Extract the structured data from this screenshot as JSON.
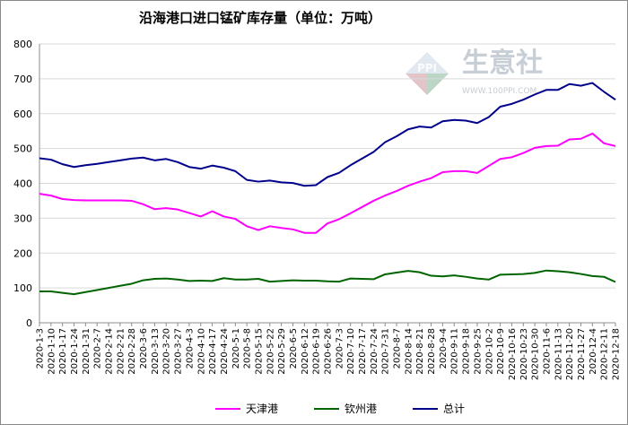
{
  "chart_data": {
    "type": "line",
    "title": "沿海港口进口锰矿库存量（单位：万吨）",
    "xlabel": "",
    "ylabel": "",
    "ylim": [
      0,
      800
    ],
    "yticks": [
      0,
      100,
      200,
      300,
      400,
      500,
      600,
      700,
      800
    ],
    "grid": true,
    "legend_position": "bottom",
    "x": [
      "2020-1-3",
      "2020-1-10",
      "2020-1-17",
      "2020-1-24",
      "2020-1-31",
      "2020-2-7",
      "2020-2-14",
      "2020-2-21",
      "2020-2-28",
      "2020-3-6",
      "2020-3-13",
      "2020-3-20",
      "2020-3-27",
      "2020-4-3",
      "2020-4-10",
      "2020-4-17",
      "2020-4-24",
      "2020-5-1",
      "2020-5-8",
      "2020-5-15",
      "2020-5-22",
      "2020-5-29",
      "2020-6-5",
      "2020-6-12",
      "2020-6-19",
      "2020-6-26",
      "2020-7-3",
      "2020-7-10",
      "2020-7-17",
      "2020-7-24",
      "2020-7-31",
      "2020-8-7",
      "2020-8-14",
      "2020-8-21",
      "2020-8-28",
      "2020-9-4",
      "2020-9-11",
      "2020-9-18",
      "2020-9-25",
      "2020-10-2",
      "2020-10-9",
      "2020-10-16",
      "2020-10-23",
      "2020-10-30",
      "2020-11-6",
      "2020-11-13",
      "2020-11-20",
      "2020-11-27",
      "2020-12-4",
      "2020-12-11",
      "2020-12-18"
    ],
    "x_tick_labels": [
      "2020-1-3",
      "2020-1-10",
      "2020-1-17",
      "2020-1-24",
      "2020-1-31",
      "2020-2-7",
      "2020-2-14",
      "2020-2-21",
      "2020-2-28",
      "2020-3-6",
      "2020-3-13",
      "2020-3-20",
      "2020-3-27",
      "2020-4-3",
      "2020-4-10",
      "2020-4-17",
      "2020-4-24",
      "2020-5-1",
      "2020-5-8",
      "2020-5-15",
      "2020-5-22",
      "2020-5-29",
      "2020-6-5",
      "2020-6-12",
      "2020-6-19",
      "2020-6-26",
      "2020-7-3",
      "2020-7-10",
      "2020-7-17",
      "2020-7-24",
      "2020-7-31",
      "2020-8-7",
      "2020-8-14",
      "2020-8-21",
      "2020-8-28",
      "2020-9-4",
      "2020-9-11",
      "2020-9-18",
      "2020-9-25",
      "2020-10-2",
      "2020-10-9",
      "2020-10-16",
      "2020-10-23",
      "2020-10-30",
      "2020-11-6",
      "2020-11-13",
      "2020-11-20",
      "2020-11-27",
      "2020-12-4",
      "2020-12-11",
      "2020-12-18"
    ],
    "series": [
      {
        "name": "天津港",
        "color": "#ff00ff",
        "values": [
          370,
          365,
          355,
          352,
          351,
          351,
          351,
          351,
          350,
          340,
          326,
          329,
          325,
          315,
          305,
          320,
          305,
          298,
          277,
          266,
          277,
          272,
          268,
          258,
          258,
          285,
          297,
          314,
          332,
          350,
          365,
          378,
          393,
          405,
          415,
          432,
          435,
          435,
          430,
          450,
          470,
          475,
          487,
          502,
          507,
          508,
          526,
          528,
          543,
          515,
          507
        ]
      },
      {
        "name": "钦州港",
        "color": "#006400",
        "values": [
          90,
          90,
          86,
          82,
          88,
          94,
          100,
          106,
          112,
          122,
          126,
          127,
          124,
          120,
          121,
          120,
          128,
          124,
          124,
          126,
          118,
          120,
          122,
          121,
          121,
          119,
          118,
          127,
          126,
          125,
          139,
          144,
          149,
          145,
          135,
          133,
          136,
          132,
          127,
          124,
          138,
          139,
          140,
          143,
          150,
          148,
          145,
          140,
          134,
          132,
          117
        ]
      },
      {
        "name": "总计",
        "color": "#00008b",
        "values": [
          472,
          468,
          455,
          447,
          452,
          456,
          461,
          466,
          471,
          474,
          466,
          470,
          461,
          447,
          442,
          451,
          445,
          435,
          410,
          405,
          408,
          403,
          401,
          393,
          395,
          418,
          430,
          452,
          471,
          490,
          518,
          535,
          555,
          563,
          560,
          578,
          582,
          580,
          573,
          590,
          620,
          628,
          640,
          655,
          668,
          668,
          685,
          680,
          688,
          663,
          640
        ]
      }
    ]
  },
  "watermark": {
    "brand": "生意社",
    "logo_text": "PPI",
    "url": "WWW.100PPI.COM"
  }
}
